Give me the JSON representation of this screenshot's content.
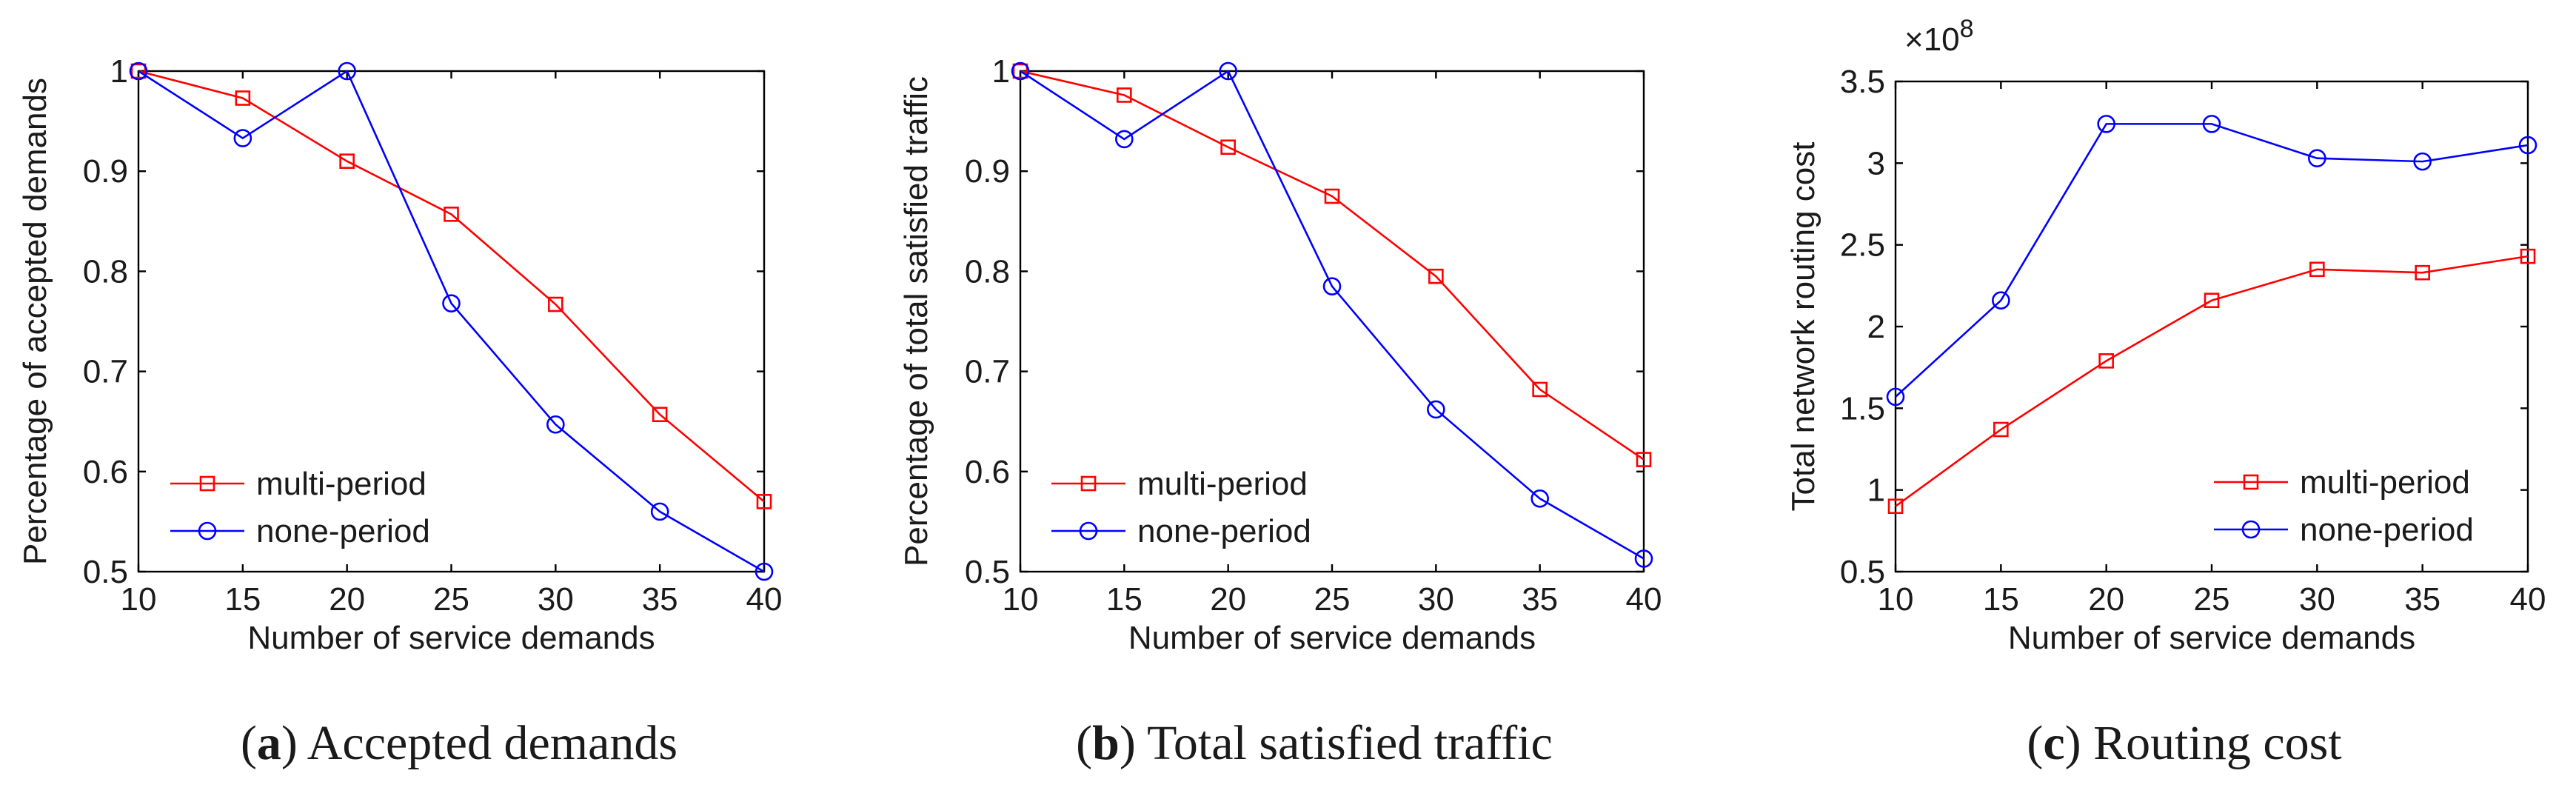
{
  "chart_data": [
    {
      "id": "a",
      "type": "line",
      "caption_letter": "a",
      "caption_text": "Accepted demands",
      "xlabel": "Number of service demands",
      "ylabel": "Percentage of accepted demands",
      "x": [
        10,
        15,
        20,
        25,
        30,
        35,
        40
      ],
      "xlim": [
        10,
        40
      ],
      "ylim": [
        0.5,
        1.0
      ],
      "xticks": [
        10,
        15,
        20,
        25,
        30,
        35,
        40
      ],
      "yticks": [
        0.5,
        0.6,
        0.7,
        0.8,
        0.9,
        1
      ],
      "ytick_labels": [
        "0.5",
        "0.6",
        "0.7",
        "0.8",
        "0.9",
        "1"
      ],
      "legend_position": "lower-left",
      "exponent_label": "",
      "series": [
        {
          "name": "multi-period",
          "color": "#ff0000",
          "marker": "square",
          "values": [
            1.0,
            0.973,
            0.91,
            0.857,
            0.767,
            0.657,
            0.57
          ]
        },
        {
          "name": "none-period",
          "color": "#0000ff",
          "marker": "circle",
          "values": [
            1.0,
            0.933,
            1.0,
            0.768,
            0.647,
            0.56,
            0.5
          ]
        }
      ]
    },
    {
      "id": "b",
      "type": "line",
      "caption_letter": "b",
      "caption_text": "Total satisfied traffic",
      "xlabel": "Number of service demands",
      "ylabel": "Percentage of total satisfied traffic",
      "x": [
        10,
        15,
        20,
        25,
        30,
        35,
        40
      ],
      "xlim": [
        10,
        40
      ],
      "ylim": [
        0.5,
        1.0
      ],
      "xticks": [
        10,
        15,
        20,
        25,
        30,
        35,
        40
      ],
      "yticks": [
        0.5,
        0.6,
        0.7,
        0.8,
        0.9,
        1
      ],
      "ytick_labels": [
        "0.5",
        "0.6",
        "0.7",
        "0.8",
        "0.9",
        "1"
      ],
      "legend_position": "lower-left",
      "exponent_label": "",
      "series": [
        {
          "name": "multi-period",
          "color": "#ff0000",
          "marker": "square",
          "values": [
            1.0,
            0.976,
            0.924,
            0.875,
            0.795,
            0.682,
            0.612
          ]
        },
        {
          "name": "none-period",
          "color": "#0000ff",
          "marker": "circle",
          "values": [
            1.0,
            0.932,
            1.0,
            0.785,
            0.662,
            0.573,
            0.513
          ]
        }
      ]
    },
    {
      "id": "c",
      "type": "line",
      "caption_letter": "c",
      "caption_text": "Routing cost",
      "xlabel": "Number of service demands",
      "ylabel": "Total network routing cost",
      "x": [
        10,
        15,
        20,
        25,
        30,
        35,
        40
      ],
      "xlim": [
        10,
        40
      ],
      "ylim": [
        0.5,
        3.5
      ],
      "xticks": [
        10,
        15,
        20,
        25,
        30,
        35,
        40
      ],
      "yticks": [
        0.5,
        1,
        1.5,
        2,
        2.5,
        3,
        3.5
      ],
      "ytick_labels": [
        "0.5",
        "1",
        "1.5",
        "2",
        "2.5",
        "3",
        "3.5"
      ],
      "legend_position": "lower-right",
      "exponent_label": "×10",
      "exponent_power": "8",
      "series": [
        {
          "name": "multi-period",
          "color": "#ff0000",
          "marker": "square",
          "values": [
            0.9,
            1.37,
            1.79,
            2.16,
            2.35,
            2.33,
            2.43
          ]
        },
        {
          "name": "none-period",
          "color": "#0000ff",
          "marker": "circle",
          "values": [
            1.57,
            2.16,
            3.24,
            3.24,
            3.03,
            3.01,
            3.11
          ]
        }
      ]
    }
  ]
}
